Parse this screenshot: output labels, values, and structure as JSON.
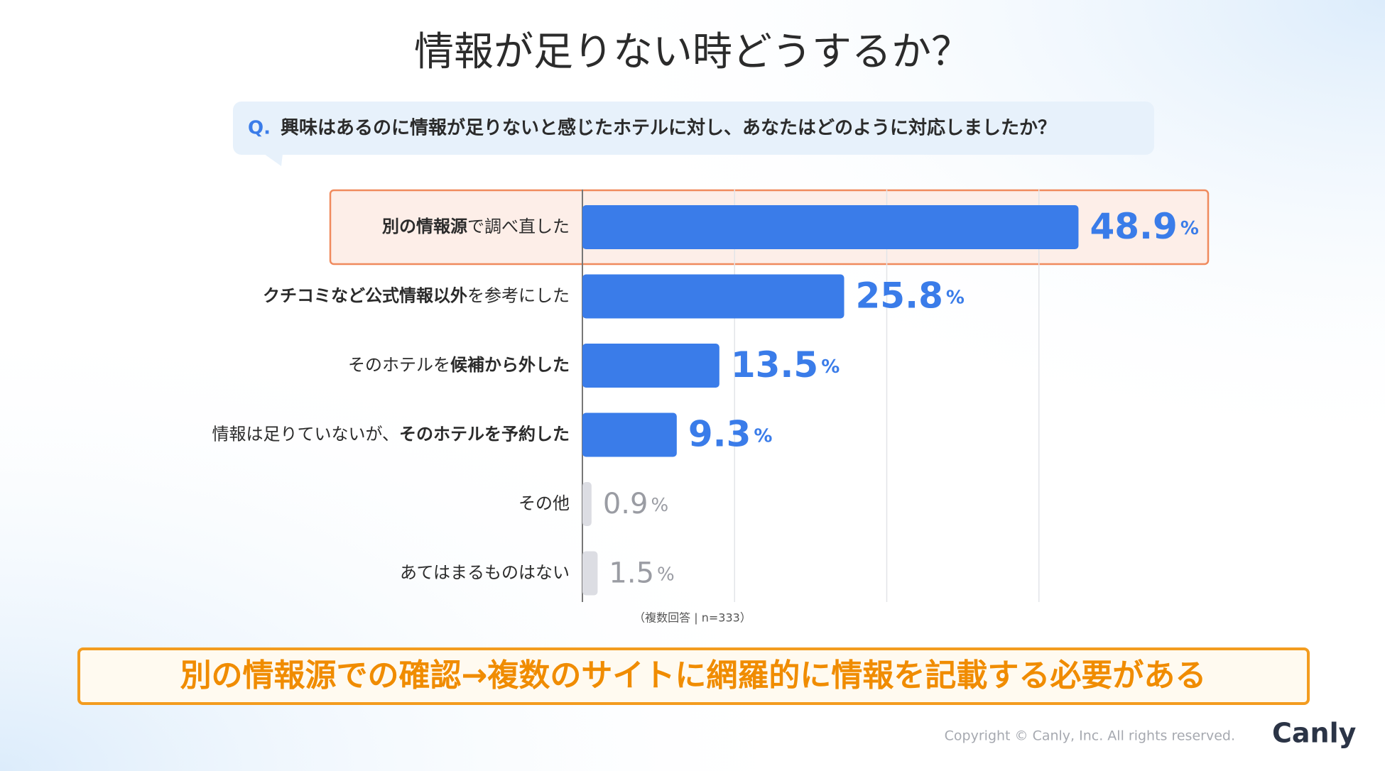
{
  "chart_data": {
    "type": "bar",
    "orientation": "horizontal",
    "title": "情報が足りない時どうするか？",
    "question_prefix": "Q.",
    "question": "興味はあるのに情報が足りないと感じたホテルに対し、あなたはどのように対応しましたか？",
    "categories": [
      [
        {
          "text": "別の情報源",
          "bold": true
        },
        {
          "text": "で調べ直した",
          "bold": false
        }
      ],
      [
        {
          "text": "クチコミなど公式情報以外",
          "bold": true
        },
        {
          "text": "を参考にした",
          "bold": false
        }
      ],
      [
        {
          "text": "そのホテルを",
          "bold": false
        },
        {
          "text": "候補から外した",
          "bold": true
        }
      ],
      [
        {
          "text": "情報は足りていないが、",
          "bold": false
        },
        {
          "text": "そのホテルを予約した",
          "bold": true
        }
      ],
      [
        {
          "text": "その他",
          "bold": false
        }
      ],
      [
        {
          "text": "あてはまるものはない",
          "bold": false
        }
      ]
    ],
    "values": [
      48.9,
      25.8,
      13.5,
      9.3,
      0.9,
      1.5
    ],
    "unit": "%",
    "colors": [
      "#3a7ce9",
      "#3a7ce9",
      "#3a7ce9",
      "#3a7ce9",
      "#dcdde3",
      "#dcdde3"
    ],
    "label_colors": [
      "#3a7ce9",
      "#3a7ce9",
      "#3a7ce9",
      "#3a7ce9",
      "#9a9ca3",
      "#9a9ca3"
    ],
    "highlight": 0,
    "xlim": [
      0,
      60
    ],
    "xticks": [
      0,
      15,
      30,
      45
    ],
    "grid": true,
    "note": "（複数回答 | n=333）",
    "conclusion": "別の情報源での確認→複数のサイトに網羅的に情報を記載する必要がある",
    "copyright": "Copyright © Canly, Inc. All rights reserved.",
    "logo": "Canly"
  }
}
